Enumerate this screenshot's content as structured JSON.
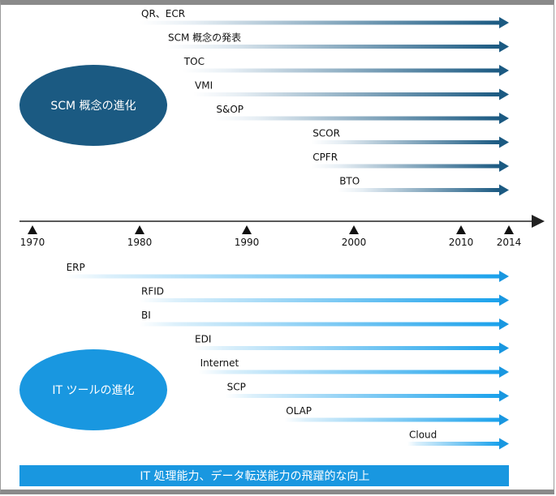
{
  "scm": {
    "title": "SCM 概念の進化",
    "items": [
      {
        "label": "QR、ECR",
        "start": 1980
      },
      {
        "label": "SCM 概念の発表",
        "start": 1982.5
      },
      {
        "label": "TOC",
        "start": 1984
      },
      {
        "label": "VMI",
        "start": 1985
      },
      {
        "label": "S&OP",
        "start": 1987
      },
      {
        "label": "SCOR",
        "start": 1996
      },
      {
        "label": "CPFR",
        "start": 1996
      },
      {
        "label": "BTO",
        "start": 1998.5
      }
    ]
  },
  "it": {
    "title": "IT ツールの進化",
    "items": [
      {
        "label": "ERP",
        "start": 1973
      },
      {
        "label": "RFID",
        "start": 1980
      },
      {
        "label": "BI",
        "start": 1980
      },
      {
        "label": "EDI",
        "start": 1985
      },
      {
        "label": "Internet",
        "start": 1985.5
      },
      {
        "label": "SCP",
        "start": 1988
      },
      {
        "label": "OLAP",
        "start": 1993.5
      },
      {
        "label": "Cloud",
        "start": 2005
      }
    ]
  },
  "timeline": {
    "end": 2014,
    "ticks": [
      "1970",
      "1980",
      "1990",
      "2000",
      "2010",
      "2014"
    ]
  },
  "banner": {
    "text": "IT 処理能力、データ転送能力の飛躍的な向上"
  },
  "colors": {
    "scm_dark": "#1b5a82",
    "it_dark": "#1997e0",
    "axis": "#222222"
  }
}
